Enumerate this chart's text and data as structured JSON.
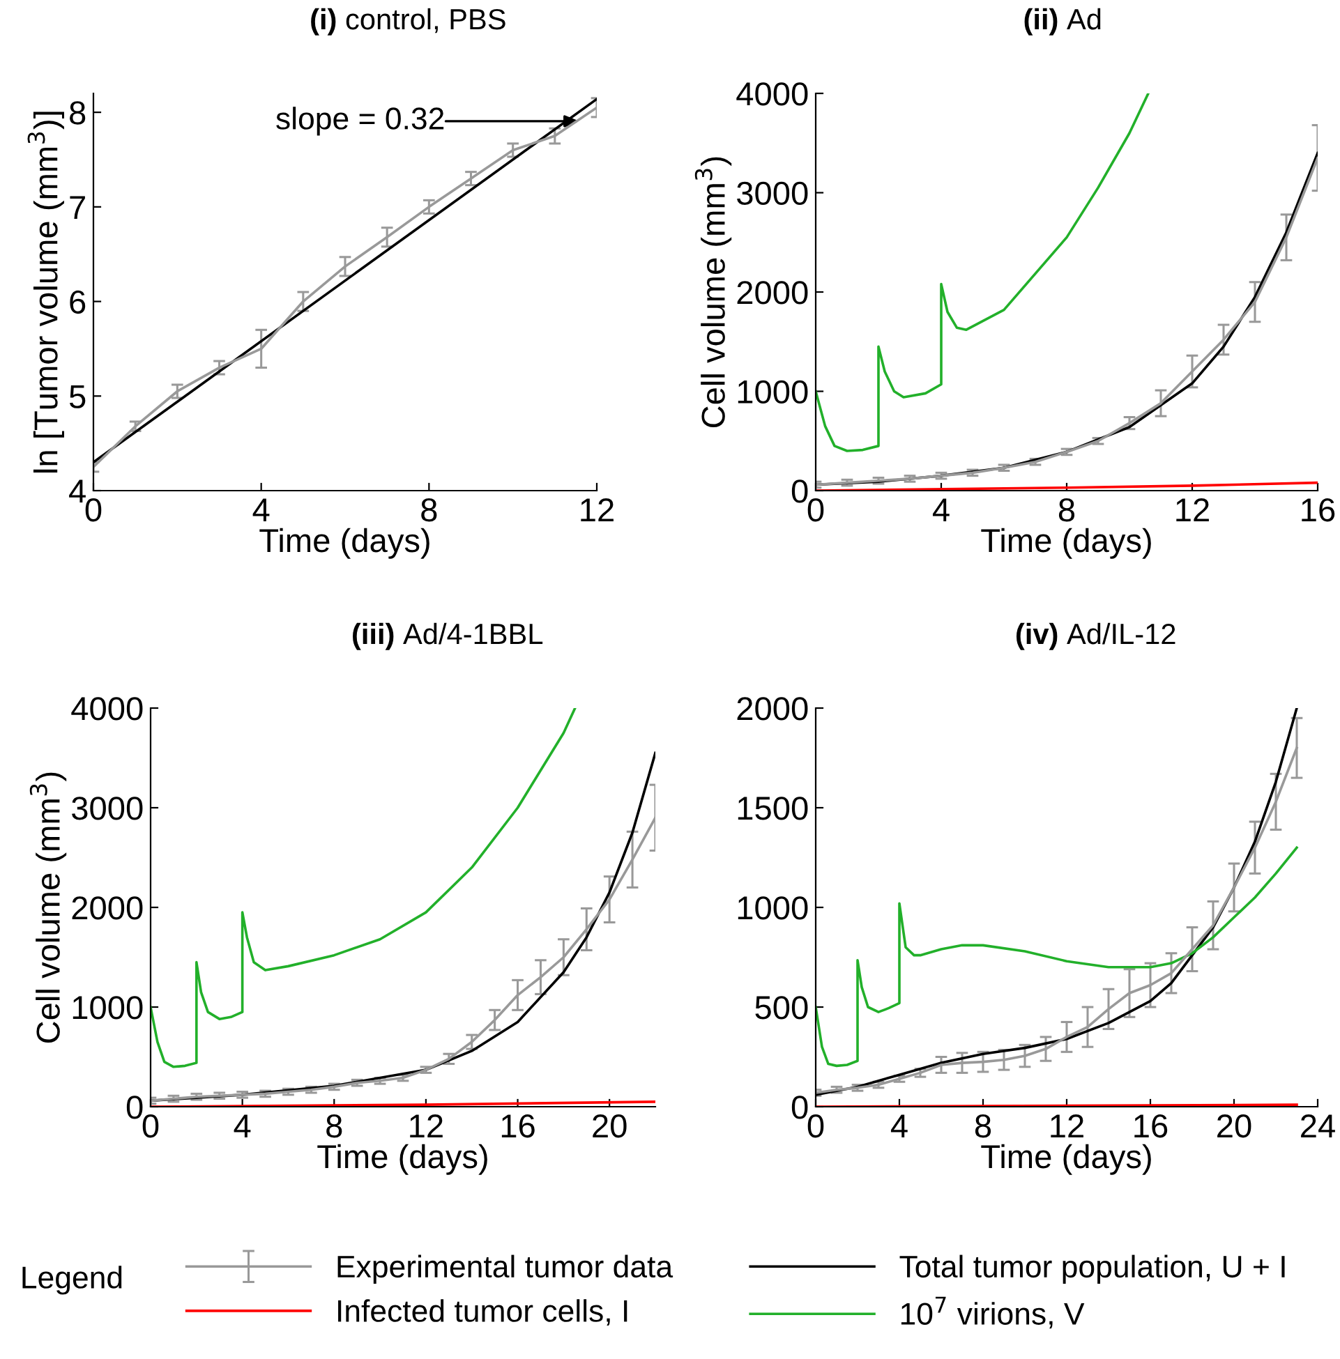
{
  "chart_data": [
    {
      "type": "line",
      "title": "(i) control, PBS",
      "xlabel": "Time (days)",
      "ylabel": "ln [Tumor volume (mm$^{3}$)]",
      "xlim": [
        0,
        12
      ],
      "ylim": [
        4,
        8.2
      ],
      "xticks": [
        0,
        4,
        8,
        12
      ],
      "yticks": [
        4,
        5,
        6,
        7,
        8
      ],
      "grid": false,
      "legend": false,
      "annotations": [
        "slope = 0.32"
      ],
      "series": [
        {
          "color": "#999999",
          "x": [
            0,
            1,
            2,
            3,
            4,
            5,
            6,
            7,
            8,
            9,
            10,
            11,
            12
          ],
          "values": [
            4.25,
            4.68,
            5.05,
            5.3,
            5.5,
            6.0,
            6.37,
            6.68,
            7.0,
            7.3,
            7.6,
            7.75,
            8.05
          ],
          "errors": [
            0.05,
            0.05,
            0.07,
            0.07,
            0.2,
            0.1,
            0.1,
            0.1,
            0.07,
            0.07,
            0.07,
            0.08,
            0.1
          ]
        },
        {
          "color": "#000000",
          "x": [
            0,
            12
          ],
          "values": [
            4.3,
            8.14
          ]
        }
      ]
    },
    {
      "type": "line",
      "title": "(ii) Ad",
      "xlabel": "Time (days)",
      "ylabel": "Cell volume (mm$^{3}$)",
      "xlim": [
        0,
        16
      ],
      "ylim": [
        0,
        4000
      ],
      "xticks": [
        0,
        4,
        8,
        12,
        16
      ],
      "yticks": [
        0,
        1000,
        2000,
        3000,
        4000
      ],
      "grid": false,
      "legend": false,
      "series": [
        {
          "color": "#999999",
          "x": [
            0,
            1,
            2,
            3,
            4,
            5,
            6,
            7,
            8,
            9,
            10,
            11,
            12,
            13,
            14,
            15,
            16
          ],
          "values": [
            60,
            80,
            100,
            120,
            150,
            180,
            230,
            290,
            390,
            500,
            680,
            880,
            1200,
            1520,
            1900,
            2550,
            3350
          ],
          "errors": [
            30,
            30,
            30,
            30,
            30,
            30,
            30,
            30,
            30,
            30,
            60,
            130,
            160,
            150,
            200,
            230,
            330
          ]
        },
        {
          "color": "#ff0000",
          "x": [
            0,
            8,
            12,
            16
          ],
          "values": [
            0,
            30,
            50,
            80
          ]
        },
        {
          "color": "#000000",
          "x": [
            0,
            2,
            4,
            6,
            8,
            10,
            12,
            13,
            14,
            15,
            16
          ],
          "values": [
            60,
            90,
            150,
            230,
            390,
            640,
            1080,
            1450,
            1950,
            2600,
            3400
          ]
        },
        {
          "color": "#22b02a",
          "x": [
            0,
            0.3,
            0.6,
            1,
            1.5,
            2,
            2,
            2.2,
            2.5,
            2.8,
            3.5,
            4,
            4,
            4.2,
            4.5,
            4.8,
            6,
            8,
            9,
            10,
            10.6
          ],
          "values": [
            1000,
            650,
            450,
            400,
            410,
            450,
            1450,
            1200,
            1000,
            940,
            980,
            1070,
            2080,
            1800,
            1640,
            1620,
            1820,
            2550,
            3050,
            3600,
            4000
          ]
        }
      ]
    },
    {
      "type": "line",
      "title": "(iii) Ad/4-1BBL",
      "xlabel": "Time (days)",
      "ylabel": "Cell volume (mm$^{3}$)",
      "xlim": [
        0,
        22
      ],
      "ylim": [
        0,
        4000
      ],
      "xticks": [
        0,
        4,
        8,
        12,
        16,
        20
      ],
      "yticks": [
        0,
        1000,
        2000,
        3000,
        4000
      ],
      "grid": false,
      "legend": false,
      "series": [
        {
          "color": "#999999",
          "x": [
            0,
            1,
            2,
            3,
            4,
            5,
            6,
            7,
            8,
            9,
            10,
            11,
            12,
            13,
            14,
            15,
            16,
            17,
            18,
            19,
            20,
            21,
            22
          ],
          "values": [
            60,
            80,
            100,
            110,
            120,
            130,
            150,
            170,
            200,
            240,
            260,
            290,
            370,
            480,
            650,
            870,
            1120,
            1300,
            1500,
            1780,
            2080,
            2480,
            2900
          ],
          "errors": [
            30,
            30,
            30,
            30,
            30,
            30,
            30,
            30,
            30,
            30,
            30,
            30,
            30,
            50,
            70,
            100,
            150,
            170,
            180,
            210,
            230,
            280,
            330
          ]
        },
        {
          "color": "#ff0000",
          "x": [
            0,
            12,
            22
          ],
          "values": [
            0,
            20,
            50
          ]
        },
        {
          "color": "#000000",
          "x": [
            0,
            4,
            8,
            12,
            14,
            16,
            18,
            19,
            20,
            21,
            22
          ],
          "values": [
            60,
            120,
            210,
            370,
            560,
            850,
            1350,
            1700,
            2150,
            2750,
            3550
          ]
        },
        {
          "color": "#22b02a",
          "x": [
            0,
            0.3,
            0.6,
            1,
            1.5,
            2,
            2,
            2.2,
            2.5,
            3,
            3.5,
            4,
            4,
            4.2,
            4.5,
            5,
            6,
            8,
            10,
            12,
            14,
            16,
            18,
            18.5
          ],
          "values": [
            1000,
            650,
            450,
            400,
            410,
            440,
            1450,
            1150,
            950,
            880,
            900,
            950,
            1950,
            1700,
            1450,
            1370,
            1410,
            1520,
            1680,
            1950,
            2400,
            3000,
            3750,
            4000
          ]
        }
      ]
    },
    {
      "type": "line",
      "title": "(iv) Ad/IL-12",
      "xlabel": "Time (days)",
      "xlim": [
        0,
        24
      ],
      "ylim": [
        0,
        2000
      ],
      "xticks": [
        0,
        4,
        8,
        12,
        16,
        20,
        24
      ],
      "yticks": [
        0,
        500,
        1000,
        1500,
        2000
      ],
      "grid": false,
      "legend": "bottom",
      "legend_title": "Legend",
      "series": [
        {
          "name": "Experimental tumor data",
          "color": "#999999",
          "x": [
            0,
            1,
            2,
            3,
            4,
            5,
            6,
            7,
            8,
            9,
            10,
            11,
            12,
            13,
            14,
            15,
            16,
            17,
            18,
            19,
            20,
            21,
            22,
            23
          ],
          "values": [
            70,
            85,
            95,
            110,
            140,
            170,
            210,
            220,
            225,
            235,
            255,
            290,
            350,
            400,
            490,
            570,
            610,
            670,
            790,
            910,
            1100,
            1300,
            1530,
            1800
          ],
          "errors": [
            15,
            15,
            15,
            15,
            15,
            20,
            40,
            50,
            50,
            50,
            55,
            60,
            75,
            100,
            100,
            120,
            110,
            100,
            110,
            120,
            120,
            130,
            140,
            150
          ]
        },
        {
          "name": "Infected tumor cells, I",
          "color": "#ff0000",
          "x": [
            0,
            23
          ],
          "values": [
            0,
            10
          ]
        },
        {
          "name": "Total tumor population, U + I",
          "color": "#000000",
          "x": [
            0,
            2,
            4,
            6,
            8,
            10,
            12,
            14,
            16,
            17,
            18,
            19,
            20,
            21,
            22,
            23
          ],
          "values": [
            60,
            100,
            160,
            220,
            265,
            295,
            340,
            420,
            530,
            620,
            760,
            900,
            1100,
            1330,
            1630,
            2000
          ]
        },
        {
          "name": "10$^{7}$ virions, V",
          "color": "#22b02a",
          "x": [
            0,
            0.3,
            0.6,
            1,
            1.5,
            2,
            2,
            2.2,
            2.5,
            3,
            3.5,
            4,
            4,
            4.3,
            4.7,
            5,
            6,
            7,
            8,
            10,
            12,
            14,
            16,
            17,
            18,
            19,
            20,
            21,
            22,
            23
          ],
          "values": [
            500,
            300,
            215,
            205,
            210,
            230,
            735,
            600,
            500,
            475,
            495,
            520,
            1020,
            800,
            760,
            760,
            790,
            810,
            810,
            780,
            730,
            700,
            700,
            720,
            770,
            850,
            950,
            1050,
            1170,
            1300
          ]
        }
      ]
    }
  ]
}
